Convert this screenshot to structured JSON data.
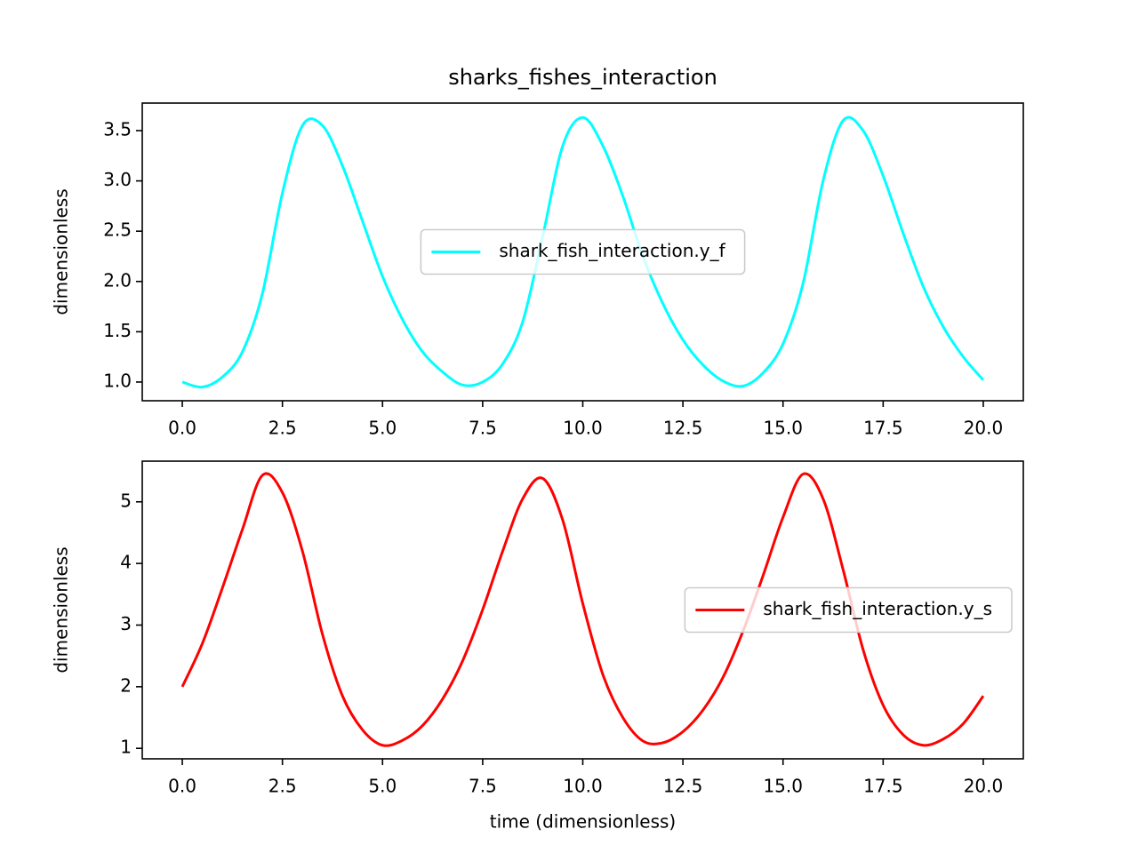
{
  "chart_data": [
    {
      "type": "line",
      "title": "sharks_fishes_interaction",
      "y_label": "dimensionless",
      "x": [
        0,
        0.5,
        1,
        1.5,
        2,
        2.5,
        3,
        3.5,
        4,
        4.5,
        5,
        5.5,
        6,
        6.5,
        7,
        7.5,
        8,
        8.5,
        9,
        9.5,
        10,
        10.5,
        11,
        11.5,
        12,
        12.5,
        13,
        13.5,
        14,
        14.5,
        15,
        15.5,
        16,
        16.5,
        17,
        17.5,
        18,
        18.5,
        19,
        19.5,
        20
      ],
      "series": [
        {
          "name": "shark_fish_interaction.y_f",
          "color": "#00ffff",
          "values": [
            1.0,
            0.95,
            1.05,
            1.3,
            1.88,
            2.88,
            3.55,
            3.55,
            3.15,
            2.6,
            2.05,
            1.62,
            1.3,
            1.1,
            0.97,
            1.0,
            1.18,
            1.6,
            2.45,
            3.35,
            3.63,
            3.35,
            2.85,
            2.25,
            1.78,
            1.42,
            1.17,
            1.01,
            0.96,
            1.09,
            1.38,
            1.98,
            3.0,
            3.6,
            3.5,
            3.05,
            2.48,
            1.95,
            1.55,
            1.25,
            1.02
          ]
        }
      ],
      "xlim": [
        -1.0,
        21.0
      ],
      "ylim": [
        0.814,
        3.774
      ],
      "xticks": [
        {
          "value": 0,
          "label": "0.0"
        },
        2.5,
        {
          "value": 5,
          "label": "5.0"
        },
        7.5,
        {
          "value": 10,
          "label": "10.0"
        },
        12.5,
        {
          "value": 15,
          "label": "15.0"
        },
        17.5,
        {
          "value": 20,
          "label": "20.0"
        }
      ],
      "yticks": [
        {
          "value": 1,
          "label": "1.0"
        },
        1.5,
        {
          "value": 2,
          "label": "2.0"
        },
        2.5,
        {
          "value": 3,
          "label": "3.0"
        },
        3.5
      ],
      "legend": "center"
    },
    {
      "type": "line",
      "x_label": "time (dimensionless)",
      "y_label": "dimensionless",
      "x": [
        0,
        0.5,
        1,
        1.5,
        2,
        2.5,
        3,
        3.5,
        4,
        4.5,
        5,
        5.5,
        6,
        6.5,
        7,
        7.5,
        8,
        8.5,
        9,
        9.5,
        10,
        10.5,
        11,
        11.5,
        12,
        12.5,
        13,
        13.5,
        14,
        14.5,
        15,
        15.5,
        16,
        16.5,
        17,
        17.5,
        18,
        18.5,
        19,
        19.5,
        20
      ],
      "series": [
        {
          "name": "shark_fish_interaction.y_s",
          "color": "#ff0000",
          "values": [
            2.0,
            2.7,
            3.6,
            4.55,
            5.43,
            5.15,
            4.2,
            2.85,
            1.85,
            1.3,
            1.05,
            1.13,
            1.37,
            1.8,
            2.42,
            3.25,
            4.2,
            5.05,
            5.38,
            4.7,
            3.35,
            2.2,
            1.5,
            1.12,
            1.09,
            1.27,
            1.62,
            2.15,
            2.9,
            3.8,
            4.75,
            5.45,
            5.05,
            3.9,
            2.6,
            1.7,
            1.22,
            1.05,
            1.15,
            1.4,
            1.85
          ]
        }
      ],
      "xlim": [
        -1.0,
        21.0
      ],
      "ylim": [
        0.83,
        5.66
      ],
      "xticks": [
        {
          "value": 0,
          "label": "0.0"
        },
        2.5,
        {
          "value": 5,
          "label": "5.0"
        },
        7.5,
        {
          "value": 10,
          "label": "10.0"
        },
        12.5,
        {
          "value": 15,
          "label": "15.0"
        },
        17.5,
        {
          "value": 20,
          "label": "20.0"
        }
      ],
      "yticks": [
        1,
        2,
        3,
        4,
        5
      ],
      "legend": "center right"
    }
  ]
}
